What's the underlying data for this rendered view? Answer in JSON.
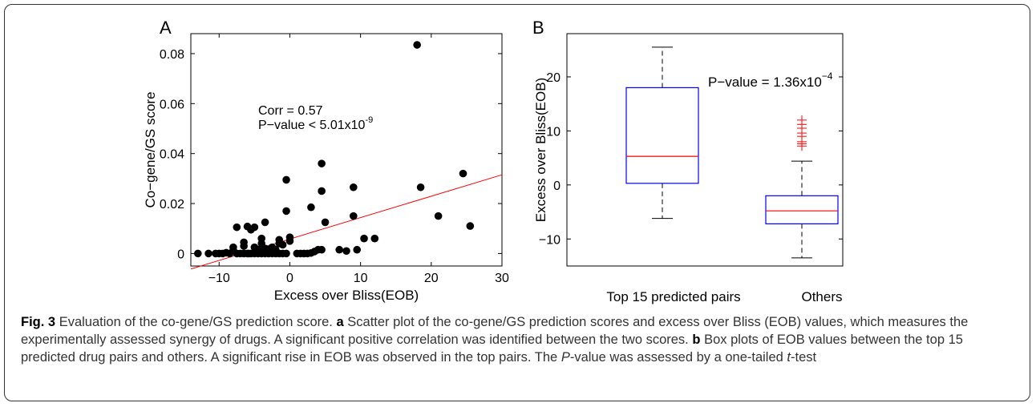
{
  "figure": {
    "panel_a_label": "A",
    "panel_b_label": "B",
    "caption": {
      "figure_label": "Fig. 3",
      "title": "Evaluation of the co-gene/GS prediction score.",
      "a_label": "a",
      "a_text": "Scatter plot of the co-gene/GS prediction scores and excess over Bliss (EOB) values, which measures the experimentally assessed synergy of drugs. A significant positive correlation was identified between the two scores.",
      "b_label": "b",
      "b_text": "Box plots of EOB values between the top 15 predicted drug pairs and others. A significant rise in EOB was observed in the top pairs. The",
      "p_italic": "P",
      "p_rest": "-value was assessed by a one-tailed",
      "t_italic": "t",
      "t_rest": "-test"
    }
  },
  "chart_data": [
    {
      "type": "scatter",
      "title": "",
      "xlabel": "Excess over Bliss(EOB)",
      "ylabel": "Co−gene/GS score",
      "xlim": [
        -14,
        30
      ],
      "ylim": [
        -0.005,
        0.088
      ],
      "xticks": [
        -10,
        0,
        10,
        20,
        30
      ],
      "yticks": [
        0,
        0.02,
        0.04,
        0.06,
        0.08
      ],
      "xtick_labels": [
        "−10",
        "0",
        "10",
        "20",
        "30"
      ],
      "ytick_labels": [
        "0",
        "0.02",
        "0.04",
        "0.06",
        "0.08"
      ],
      "annotations": [
        "Corr = 0.57",
        "P−value < 5.01x10",
        "-9"
      ],
      "point_color": "#000000",
      "points": [
        [
          -13,
          0.0
        ],
        [
          -11.5,
          0.0
        ],
        [
          -10.5,
          0.0
        ],
        [
          -10,
          0.0
        ],
        [
          -9.5,
          0.0
        ],
        [
          -9,
          0.0003
        ],
        [
          -8.5,
          0.0
        ],
        [
          -8,
          0.0012
        ],
        [
          -7.5,
          0.0
        ],
        [
          -7,
          0.0
        ],
        [
          -6.5,
          0.0
        ],
        [
          -6,
          0.0
        ],
        [
          -5.8,
          0.0
        ],
        [
          -5.5,
          0.0
        ],
        [
          -5,
          0.0
        ],
        [
          -4.5,
          0.0
        ],
        [
          -4,
          0.0
        ],
        [
          -3.5,
          0.0
        ],
        [
          -3,
          0.0
        ],
        [
          -2.5,
          0.0
        ],
        [
          -2,
          0.0
        ],
        [
          -1.5,
          0.0
        ],
        [
          -1,
          0.0
        ],
        [
          1,
          0.0
        ],
        [
          1.5,
          0.0
        ],
        [
          2,
          0.0
        ],
        [
          2.5,
          0.0
        ],
        [
          3,
          0.0002
        ],
        [
          3.5,
          0.0008
        ],
        [
          -8,
          0.0025
        ],
        [
          -7.5,
          0.0105
        ],
        [
          -6.5,
          0.0045
        ],
        [
          -6.5,
          0.003
        ],
        [
          -6,
          0.0108
        ],
        [
          -5.5,
          0.0095
        ],
        [
          -5,
          0.0105
        ],
        [
          -5,
          0.0025
        ],
        [
          -4.5,
          0.0015
        ],
        [
          -4,
          0.006
        ],
        [
          -4,
          0.004
        ],
        [
          -3.5,
          0.0125
        ],
        [
          -3.5,
          0.002
        ],
        [
          -3,
          0.0015
        ],
        [
          -2.5,
          0.0025
        ],
        [
          -2,
          0.0015
        ],
        [
          -1.5,
          0.0055
        ],
        [
          -1.5,
          0.004
        ],
        [
          -1,
          0.0035
        ],
        [
          -0.5,
          0.0
        ],
        [
          -0.5,
          0.0295
        ],
        [
          -0.5,
          0.017
        ],
        [
          0,
          0.0065
        ],
        [
          0,
          0.005
        ],
        [
          3,
          0.0185
        ],
        [
          4.5,
          0.036
        ],
        [
          4.5,
          0.025
        ],
        [
          5,
          0.0125
        ],
        [
          4,
          0.0015
        ],
        [
          4.5,
          0.0015
        ],
        [
          7,
          0.0015
        ],
        [
          8,
          0.001
        ],
        [
          9,
          0.0265
        ],
        [
          9,
          0.015
        ],
        [
          9.5,
          0.0015
        ],
        [
          10.5,
          0.006
        ],
        [
          12,
          0.006
        ],
        [
          18,
          0.0835
        ],
        [
          18.5,
          0.0265
        ],
        [
          21,
          0.015
        ],
        [
          24.5,
          0.032
        ],
        [
          25.5,
          0.011
        ]
      ],
      "fit_line": {
        "x": [
          -14,
          30
        ],
        "y": [
          -0.0062,
          0.0315
        ],
        "color": "#ff0000"
      }
    },
    {
      "type": "box",
      "title": "",
      "xlabel": "",
      "ylabel": "Excess over Bliss(EOB)",
      "ylim": [
        -15,
        28
      ],
      "yticks": [
        -10,
        0,
        10,
        20
      ],
      "ytick_labels": [
        "−10",
        "0",
        "10",
        "20"
      ],
      "categories": [
        "Top 15 predicted pairs",
        "Others"
      ],
      "annotation": {
        "text": "P−value = 1.36x10",
        "sup": "−4"
      },
      "box_color": "#0000ff",
      "median_color": "#ff0000",
      "whisker_color": "#000000",
      "outlier_color": "#ff0000",
      "boxes": [
        {
          "name": "Top 15 predicted pairs",
          "whisker_low": -6.2,
          "q1": 0.3,
          "median": 5.3,
          "q3": 18.0,
          "whisker_high": 25.5,
          "outliers": []
        },
        {
          "name": "Others",
          "whisker_low": -13.5,
          "q1": -7.2,
          "median": -4.8,
          "q3": -2.0,
          "whisker_high": 4.4,
          "outliers": [
            7.2,
            7.6,
            8.0,
            9.0,
            9.6,
            10.5,
            11.2,
            12.0
          ]
        }
      ]
    }
  ]
}
